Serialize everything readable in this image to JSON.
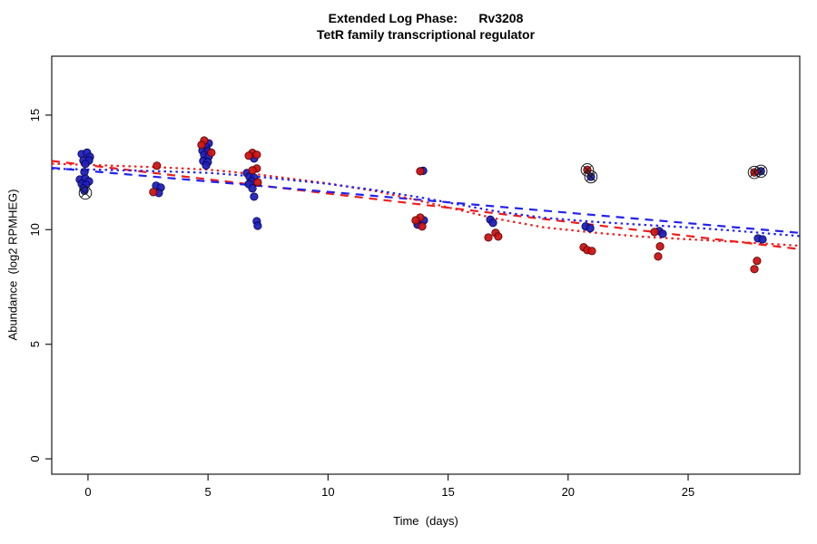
{
  "figure": {
    "title_line1": "Extended Log Phase:      Rv3208",
    "title_line2": "TetR family transcriptional regulator",
    "xlabel": "Time  (days)",
    "ylabel": "Abundance  (log2 RPMHEG)"
  },
  "chart_data": {
    "type": "scatter",
    "title": "Extended Log Phase: Rv3208",
    "subtitle": "TetR family transcriptional regulator",
    "xlabel": "Time (days)",
    "ylabel": "Abundance (log2 RPMHEG)",
    "xlim": [
      -1.51,
      29.65
    ],
    "ylim": [
      -0.67,
      17.57
    ],
    "x_ticks": [
      0,
      5,
      10,
      15,
      20,
      25
    ],
    "y_ticks": [
      0,
      5,
      10,
      15
    ],
    "grid": false,
    "legend": "none",
    "point_series": [
      {
        "name": "condition-blue",
        "color": "#2121b8",
        "stroke": "#000050",
        "points": [
          [
            -0.26,
            13.3
          ],
          [
            -0.04,
            13.36
          ],
          [
            0.08,
            13.18
          ],
          [
            -0.19,
            13.02
          ],
          [
            0.04,
            13.02
          ],
          [
            -0.11,
            12.87
          ],
          [
            -0.15,
            12.51
          ],
          [
            -0.34,
            12.19
          ],
          [
            -0.11,
            12.23
          ],
          [
            0.04,
            12.11
          ],
          [
            -0.26,
            12.0
          ],
          [
            -0.08,
            11.96
          ],
          [
            -0.19,
            11.8
          ],
          [
            -0.15,
            11.7
          ],
          [
            2.84,
            11.92
          ],
          [
            3.03,
            11.84
          ],
          [
            2.95,
            11.6
          ],
          [
            5.03,
            13.77
          ],
          [
            4.92,
            13.6
          ],
          [
            4.77,
            13.45
          ],
          [
            4.99,
            13.42
          ],
          [
            4.84,
            13.26
          ],
          [
            5.03,
            13.2
          ],
          [
            4.8,
            13.0
          ],
          [
            4.99,
            12.95
          ],
          [
            4.92,
            12.8
          ],
          [
            6.92,
            13.11
          ],
          [
            6.62,
            12.47
          ],
          [
            6.73,
            12.31
          ],
          [
            6.92,
            12.27
          ],
          [
            6.81,
            12.11
          ],
          [
            6.7,
            11.99
          ],
          [
            6.85,
            11.8
          ],
          [
            6.92,
            11.44
          ],
          [
            7.03,
            10.37
          ],
          [
            7.07,
            10.17
          ],
          [
            13.96,
            12.57
          ],
          [
            13.99,
            10.41
          ],
          [
            13.73,
            10.22
          ],
          [
            16.76,
            10.44
          ],
          [
            16.87,
            10.3
          ],
          [
            20.73,
            10.14
          ],
          [
            20.92,
            10.06
          ],
          [
            20.95,
            12.31
          ],
          [
            23.79,
            9.94
          ],
          [
            23.94,
            9.82
          ],
          [
            27.91,
            9.62
          ],
          [
            28.1,
            9.58
          ],
          [
            28.03,
            12.55
          ]
        ]
      },
      {
        "name": "condition-red",
        "color": "#cc1414",
        "stroke": "#500000",
        "points": [
          [
            2.87,
            12.79
          ],
          [
            2.72,
            11.64
          ],
          [
            4.84,
            13.89
          ],
          [
            4.73,
            13.7
          ],
          [
            5.14,
            13.36
          ],
          [
            6.85,
            13.35
          ],
          [
            6.7,
            13.23
          ],
          [
            7.03,
            13.27
          ],
          [
            7.03,
            12.67
          ],
          [
            6.85,
            12.59
          ],
          [
            7.07,
            12.07
          ],
          [
            13.84,
            12.55
          ],
          [
            13.84,
            10.53
          ],
          [
            13.65,
            10.41
          ],
          [
            13.92,
            10.14
          ],
          [
            16.98,
            9.86
          ],
          [
            17.09,
            9.7
          ],
          [
            16.68,
            9.66
          ],
          [
            20.65,
            9.23
          ],
          [
            20.8,
            9.11
          ],
          [
            20.99,
            9.07
          ],
          [
            20.8,
            12.61
          ],
          [
            23.6,
            9.9
          ],
          [
            23.83,
            9.27
          ],
          [
            23.75,
            8.83
          ],
          [
            27.87,
            8.64
          ],
          [
            27.76,
            8.28
          ],
          [
            27.76,
            12.5
          ]
        ]
      }
    ],
    "flagged_points": {
      "name": "circle-cross-flagged",
      "symbol": "circle-cross",
      "color": "#1a1a1a",
      "points": [
        [
          -0.11,
          11.6
        ],
        [
          20.8,
          12.61
        ],
        [
          20.95,
          12.31
        ],
        [
          27.76,
          12.5
        ],
        [
          28.03,
          12.55
        ]
      ]
    },
    "trend_lines": [
      {
        "name": "red-linear-fit",
        "color": "#ee1c1c",
        "style": "dashed",
        "points": [
          [
            -1.51,
            13.0
          ],
          [
            29.65,
            9.15
          ]
        ]
      },
      {
        "name": "blue-linear-fit",
        "color": "#2222ee",
        "style": "dashed",
        "points": [
          [
            -1.51,
            12.7
          ],
          [
            29.65,
            9.86
          ]
        ]
      },
      {
        "name": "red-smooth-fit",
        "color": "#ee1c1c",
        "style": "dotted",
        "points": [
          [
            -1.51,
            12.88
          ],
          [
            0,
            12.83
          ],
          [
            3,
            12.72
          ],
          [
            5,
            12.62
          ],
          [
            7,
            12.42
          ],
          [
            10,
            12.02
          ],
          [
            12,
            11.68
          ],
          [
            14,
            11.22
          ],
          [
            17,
            10.48
          ],
          [
            19,
            10.1
          ],
          [
            21,
            9.88
          ],
          [
            23,
            9.7
          ],
          [
            25,
            9.58
          ],
          [
            27,
            9.47
          ],
          [
            29.65,
            9.3
          ]
        ]
      },
      {
        "name": "blue-smooth-fit",
        "color": "#2222ee",
        "style": "dotted",
        "points": [
          [
            -1.51,
            12.66
          ],
          [
            0,
            12.63
          ],
          [
            3,
            12.55
          ],
          [
            5,
            12.48
          ],
          [
            7,
            12.32
          ],
          [
            10,
            12.0
          ],
          [
            12,
            11.72
          ],
          [
            14,
            11.38
          ],
          [
            17,
            10.8
          ],
          [
            19,
            10.52
          ],
          [
            21,
            10.35
          ],
          [
            23,
            10.22
          ],
          [
            25,
            10.1
          ],
          [
            27,
            9.95
          ],
          [
            29.65,
            9.72
          ]
        ]
      }
    ]
  }
}
